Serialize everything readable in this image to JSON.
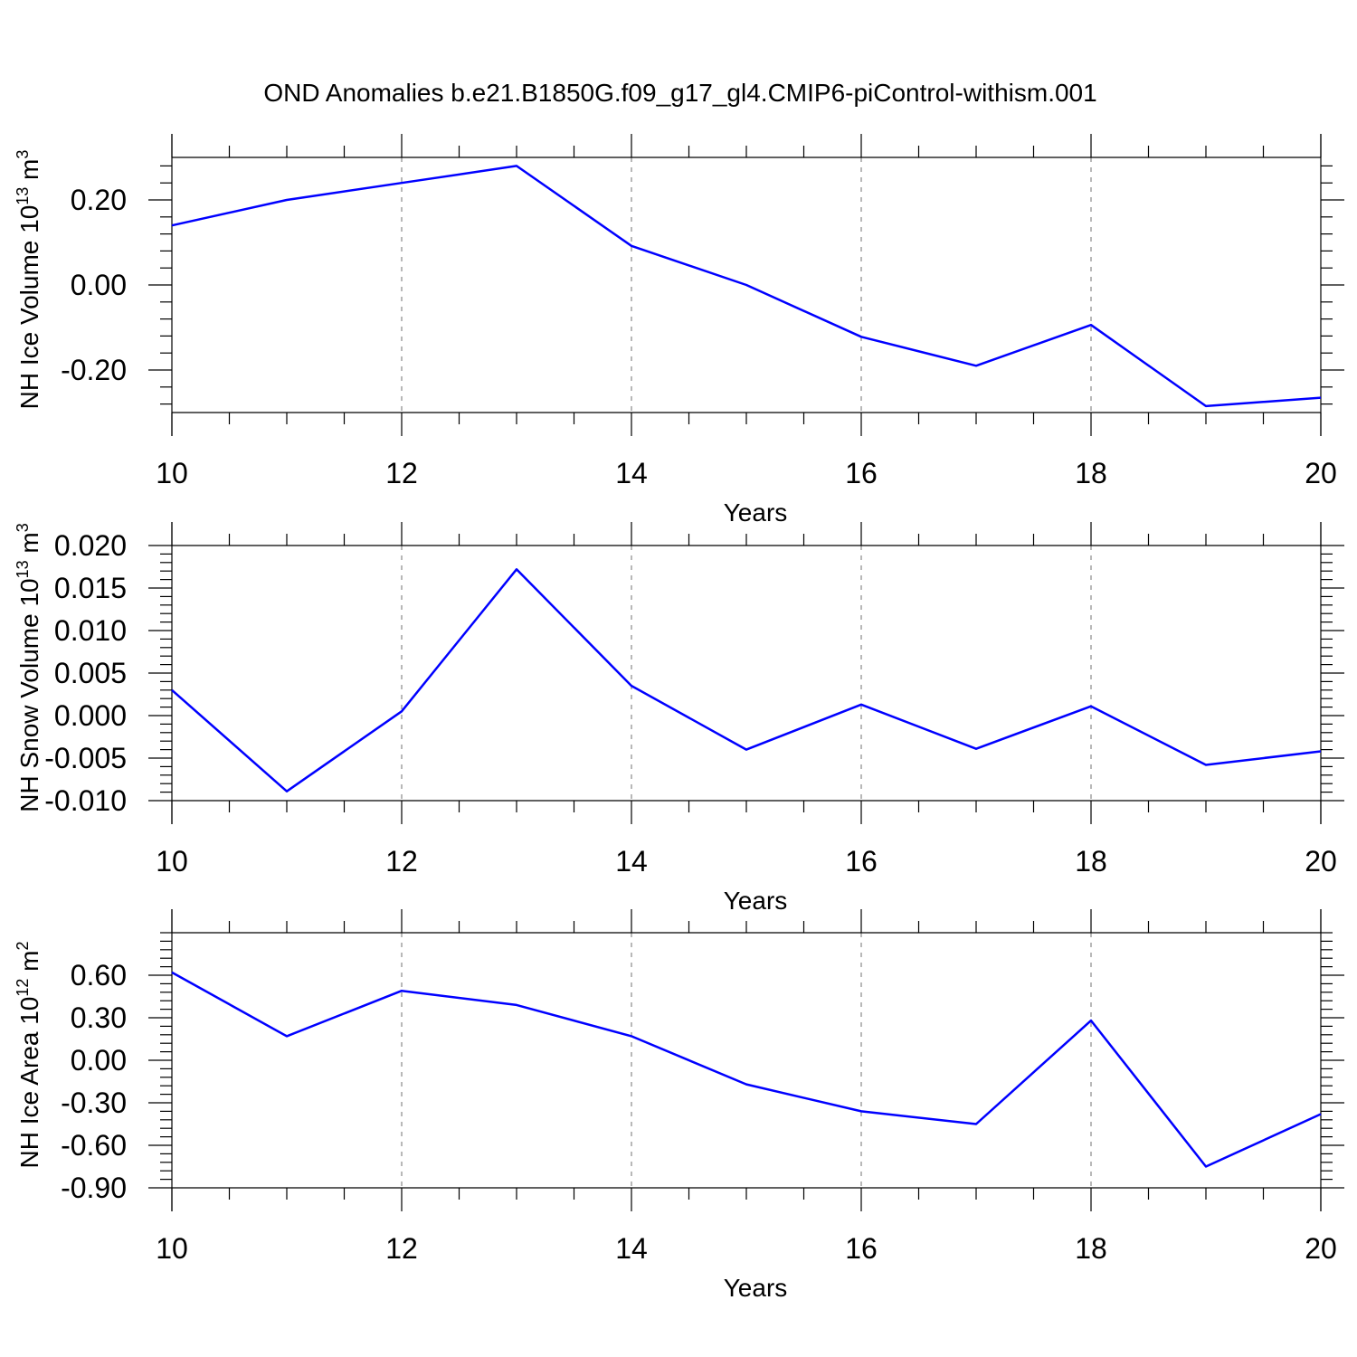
{
  "figure_title": "OND Anomalies b.e21.B1850G.f09_g17_gl4.CMIP6-piControl-withism.001",
  "colors": {
    "series": "#0000ff",
    "axes": "#000000",
    "grid": "#888888"
  },
  "chart_data": [
    {
      "type": "line",
      "xlabel": "Years",
      "ylabel": "NH Ice Volume 10",
      "ylabel_exp": "13",
      "ylabel_unit": " m",
      "ylabel_unit_exp": "3",
      "xlim": [
        10,
        20
      ],
      "ylim": [
        -0.3,
        0.3
      ],
      "xticks": [
        10,
        12,
        14,
        16,
        18,
        20
      ],
      "xtick_labels": [
        "10",
        "12",
        "14",
        "16",
        "18",
        "20"
      ],
      "yticks": [
        -0.2,
        0.0,
        0.2
      ],
      "ytick_labels": [
        "-0.20",
        "0.00",
        "0.20"
      ],
      "grid": "vertical dashed at major x ticks",
      "x": [
        10,
        11,
        12,
        13,
        14,
        15,
        16,
        17,
        18,
        19,
        20
      ],
      "values": [
        0.14,
        0.2,
        0.24,
        0.28,
        0.092,
        0.0,
        -0.122,
        -0.19,
        -0.094,
        -0.285,
        -0.265
      ]
    },
    {
      "type": "line",
      "xlabel": "Years",
      "ylabel": "NH Snow Volume 10",
      "ylabel_exp": "13",
      "ylabel_unit": " m",
      "ylabel_unit_exp": "3",
      "xlim": [
        10,
        20
      ],
      "ylim": [
        -0.01,
        0.02
      ],
      "xticks": [
        10,
        12,
        14,
        16,
        18,
        20
      ],
      "xtick_labels": [
        "10",
        "12",
        "14",
        "16",
        "18",
        "20"
      ],
      "yticks": [
        -0.01,
        -0.005,
        0.0,
        0.005,
        0.01,
        0.015,
        0.02
      ],
      "ytick_labels": [
        "-0.010",
        "-0.005",
        "0.000",
        "0.005",
        "0.010",
        "0.015",
        "0.020"
      ],
      "grid": "vertical dashed at major x ticks",
      "x": [
        10,
        11,
        12,
        13,
        14,
        15,
        16,
        17,
        18,
        19,
        20
      ],
      "values": [
        0.003,
        -0.0089,
        0.0005,
        0.0172,
        0.0035,
        -0.004,
        0.0013,
        -0.0039,
        0.0011,
        -0.0058,
        -0.0042
      ]
    },
    {
      "type": "line",
      "xlabel": "Years",
      "ylabel": "NH Ice Area 10",
      "ylabel_exp": "12",
      "ylabel_unit": " m",
      "ylabel_unit_exp": "2",
      "xlim": [
        10,
        20
      ],
      "ylim": [
        -0.9,
        0.9
      ],
      "xticks": [
        10,
        12,
        14,
        16,
        18,
        20
      ],
      "xtick_labels": [
        "10",
        "12",
        "14",
        "16",
        "18",
        "20"
      ],
      "yticks": [
        -0.9,
        -0.6,
        -0.3,
        0.0,
        0.3,
        0.6
      ],
      "ytick_labels": [
        "-0.90",
        "-0.60",
        "-0.30",
        "0.00",
        "0.30",
        "0.60"
      ],
      "grid": "vertical dashed at major x ticks",
      "x": [
        10,
        11,
        12,
        13,
        14,
        15,
        16,
        17,
        18,
        19,
        20
      ],
      "values": [
        0.62,
        0.17,
        0.49,
        0.39,
        0.17,
        -0.17,
        -0.36,
        -0.45,
        0.28,
        -0.75,
        -0.38
      ]
    }
  ]
}
